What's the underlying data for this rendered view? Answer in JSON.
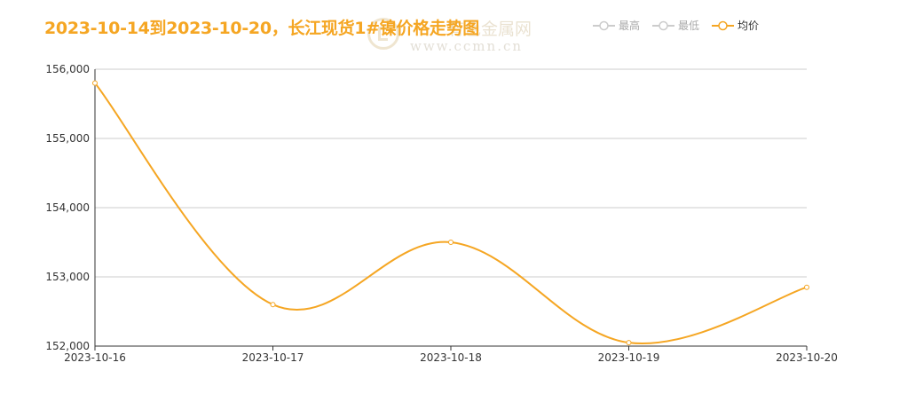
{
  "title": "2023-10-14到2023-10-20，长江现货1#镍价格走势图",
  "watermark": {
    "name": "有色金属网",
    "url": "www.ccmn.cn"
  },
  "colors": {
    "title": "#f5a623",
    "series": "#f5a623",
    "inactive_legend": "#cccccc",
    "axis": "#333333",
    "grid": "#cccccc"
  },
  "legend": {
    "placement": "top-right",
    "items": [
      {
        "label": "最高",
        "active": false
      },
      {
        "label": "最低",
        "active": false
      },
      {
        "label": "均价",
        "active": true
      }
    ]
  },
  "chart_data": {
    "type": "line",
    "smooth": true,
    "grid": true,
    "x": [
      "2023-10-16",
      "2023-10-17",
      "2023-10-18",
      "2023-10-19",
      "2023-10-20"
    ],
    "y_ticks": [
      "152,000",
      "153,000",
      "154,000",
      "155,000",
      "156,000"
    ],
    "ylim": [
      152000,
      156000
    ],
    "series": [
      {
        "name": "均价",
        "values": [
          155800,
          152600,
          153500,
          152050,
          152850
        ]
      }
    ]
  }
}
